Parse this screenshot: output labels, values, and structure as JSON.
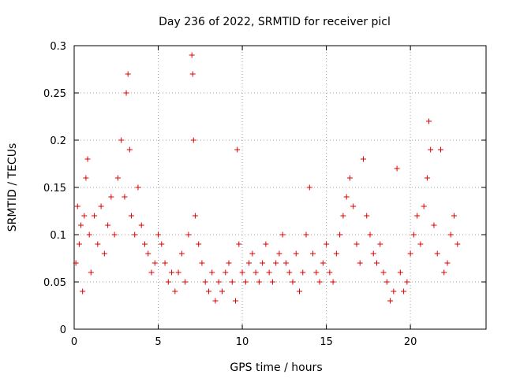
{
  "chart_data": {
    "type": "scatter",
    "title": "Day 236 of 2022, SRMTID for receiver picl",
    "xlabel": "GPS time / hours",
    "ylabel": "SRMTID / TECUs",
    "xlim": [
      0,
      24.5
    ],
    "ylim": [
      0,
      0.3
    ],
    "x_ticks": [
      0,
      5,
      10,
      15,
      20
    ],
    "x_tick_labels": [
      "0",
      "5",
      "10",
      "15",
      "20"
    ],
    "y_ticks": [
      0,
      0.05,
      0.1,
      0.15,
      0.2,
      0.25,
      0.3
    ],
    "y_tick_labels": [
      "0",
      "0.05",
      "0.1",
      "0.15",
      "0.2",
      "0.25",
      "0.3"
    ],
    "grid": true,
    "marker": "+",
    "color": "#e00000",
    "series": [
      {
        "name": "SRMTID",
        "points": [
          [
            0.1,
            0.07
          ],
          [
            0.2,
            0.13
          ],
          [
            0.3,
            0.09
          ],
          [
            0.4,
            0.11
          ],
          [
            0.5,
            0.04
          ],
          [
            0.6,
            0.12
          ],
          [
            0.7,
            0.16
          ],
          [
            0.8,
            0.18
          ],
          [
            0.9,
            0.1
          ],
          [
            1.0,
            0.06
          ],
          [
            1.2,
            0.12
          ],
          [
            1.4,
            0.09
          ],
          [
            1.6,
            0.13
          ],
          [
            1.8,
            0.08
          ],
          [
            2.0,
            0.11
          ],
          [
            2.2,
            0.14
          ],
          [
            2.4,
            0.1
          ],
          [
            2.6,
            0.16
          ],
          [
            2.8,
            0.2
          ],
          [
            3.0,
            0.14
          ],
          [
            3.1,
            0.25
          ],
          [
            3.2,
            0.27
          ],
          [
            3.3,
            0.19
          ],
          [
            3.4,
            0.12
          ],
          [
            3.6,
            0.1
          ],
          [
            3.8,
            0.15
          ],
          [
            4.0,
            0.11
          ],
          [
            4.2,
            0.09
          ],
          [
            4.4,
            0.08
          ],
          [
            4.6,
            0.06
          ],
          [
            4.8,
            0.07
          ],
          [
            5.0,
            0.1
          ],
          [
            5.2,
            0.09
          ],
          [
            5.4,
            0.07
          ],
          [
            5.6,
            0.05
          ],
          [
            5.8,
            0.06
          ],
          [
            6.0,
            0.04
          ],
          [
            6.2,
            0.06
          ],
          [
            6.4,
            0.08
          ],
          [
            6.6,
            0.05
          ],
          [
            6.8,
            0.1
          ],
          [
            7.0,
            0.29
          ],
          [
            7.05,
            0.27
          ],
          [
            7.1,
            0.2
          ],
          [
            7.2,
            0.12
          ],
          [
            7.4,
            0.09
          ],
          [
            7.6,
            0.07
          ],
          [
            7.8,
            0.05
          ],
          [
            8.0,
            0.04
          ],
          [
            8.2,
            0.06
          ],
          [
            8.4,
            0.03
          ],
          [
            8.6,
            0.05
          ],
          [
            8.8,
            0.04
          ],
          [
            9.0,
            0.06
          ],
          [
            9.2,
            0.07
          ],
          [
            9.4,
            0.05
          ],
          [
            9.6,
            0.03
          ],
          [
            9.7,
            0.19
          ],
          [
            9.8,
            0.09
          ],
          [
            10.0,
            0.06
          ],
          [
            10.2,
            0.05
          ],
          [
            10.4,
            0.07
          ],
          [
            10.6,
            0.08
          ],
          [
            10.8,
            0.06
          ],
          [
            11.0,
            0.05
          ],
          [
            11.2,
            0.07
          ],
          [
            11.4,
            0.09
          ],
          [
            11.6,
            0.06
          ],
          [
            11.8,
            0.05
          ],
          [
            12.0,
            0.07
          ],
          [
            12.2,
            0.08
          ],
          [
            12.4,
            0.1
          ],
          [
            12.6,
            0.07
          ],
          [
            12.8,
            0.06
          ],
          [
            13.0,
            0.05
          ],
          [
            13.2,
            0.08
          ],
          [
            13.4,
            0.04
          ],
          [
            13.6,
            0.06
          ],
          [
            13.8,
            0.1
          ],
          [
            14.0,
            0.15
          ],
          [
            14.2,
            0.08
          ],
          [
            14.4,
            0.06
          ],
          [
            14.6,
            0.05
          ],
          [
            14.8,
            0.07
          ],
          [
            15.0,
            0.09
          ],
          [
            15.2,
            0.06
          ],
          [
            15.4,
            0.05
          ],
          [
            15.6,
            0.08
          ],
          [
            15.8,
            0.1
          ],
          [
            16.0,
            0.12
          ],
          [
            16.2,
            0.14
          ],
          [
            16.4,
            0.16
          ],
          [
            16.6,
            0.13
          ],
          [
            16.8,
            0.09
          ],
          [
            17.0,
            0.07
          ],
          [
            17.2,
            0.18
          ],
          [
            17.4,
            0.12
          ],
          [
            17.6,
            0.1
          ],
          [
            17.8,
            0.08
          ],
          [
            18.0,
            0.07
          ],
          [
            18.2,
            0.09
          ],
          [
            18.4,
            0.06
          ],
          [
            18.6,
            0.05
          ],
          [
            18.8,
            0.03
          ],
          [
            19.0,
            0.04
          ],
          [
            19.2,
            0.17
          ],
          [
            19.4,
            0.06
          ],
          [
            19.6,
            0.04
          ],
          [
            19.8,
            0.05
          ],
          [
            20.0,
            0.08
          ],
          [
            20.2,
            0.1
          ],
          [
            20.4,
            0.12
          ],
          [
            20.6,
            0.09
          ],
          [
            20.8,
            0.13
          ],
          [
            21.0,
            0.16
          ],
          [
            21.1,
            0.22
          ],
          [
            21.2,
            0.19
          ],
          [
            21.4,
            0.11
          ],
          [
            21.6,
            0.08
          ],
          [
            21.8,
            0.19
          ],
          [
            22.0,
            0.06
          ],
          [
            22.2,
            0.07
          ],
          [
            22.4,
            0.1
          ],
          [
            22.6,
            0.12
          ],
          [
            22.8,
            0.09
          ]
        ]
      }
    ]
  }
}
